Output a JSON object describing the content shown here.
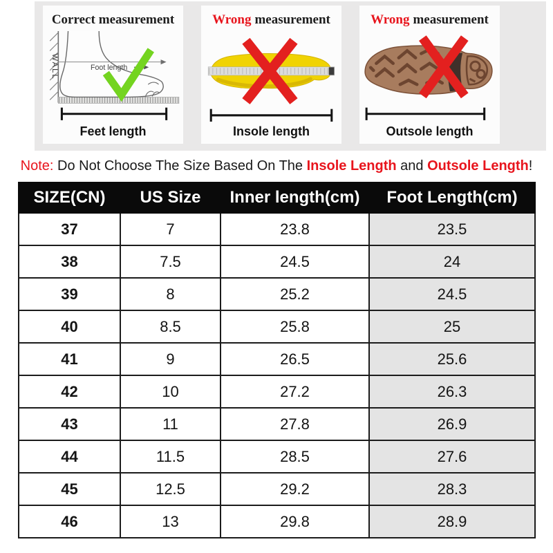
{
  "top_panels": [
    {
      "title": {
        "w1": "Correct",
        "w2": "measurement"
      },
      "wall_label": "WALL",
      "measure_label": "Foot length",
      "caption": "Feet length"
    },
    {
      "title": {
        "w1": "Wrong",
        "w2": "measurement"
      },
      "caption": "Insole length"
    },
    {
      "title": {
        "w1": "Wrong",
        "w2": "measurement"
      },
      "caption": "Outsole length"
    }
  ],
  "note": {
    "prefix": "Note:",
    "text1": " Do Not Choose The Size Based On The ",
    "highlight1": "Insole Length",
    "text2": " and ",
    "highlight2": "Outsole Length",
    "suffix": "!"
  },
  "size_table": {
    "headers": [
      "SIZE(CN)",
      "US Size",
      "Inner length(cm)",
      "Foot Length(cm)"
    ],
    "column_keys": [
      "size-cn",
      "us-size",
      "inner-length",
      "foot-length"
    ],
    "rows": [
      [
        "37",
        "7",
        "23.8",
        "23.5"
      ],
      [
        "38",
        "7.5",
        "24.5",
        "24"
      ],
      [
        "39",
        "8",
        "25.2",
        "24.5"
      ],
      [
        "40",
        "8.5",
        "25.8",
        "25"
      ],
      [
        "41",
        "9",
        "26.5",
        "25.6"
      ],
      [
        "42",
        "10",
        "27.2",
        "26.3"
      ],
      [
        "43",
        "11",
        "27.8",
        "26.9"
      ],
      [
        "44",
        "11.5",
        "28.5",
        "27.6"
      ],
      [
        "45",
        "12.5",
        "29.2",
        "28.3"
      ],
      [
        "46",
        "13",
        "29.8",
        "28.9"
      ]
    ]
  },
  "colors": {
    "accent_red": "#e8151d",
    "x_mark_red": "#e3201f",
    "check_green": "#74d420",
    "insole_yellow": "#f0d303",
    "outsole_brown": "#a87c5e",
    "header_bg": "#0a0a0a",
    "shaded_column_bg": "#e4e4e4",
    "band_bg": "#e9e8e8"
  }
}
